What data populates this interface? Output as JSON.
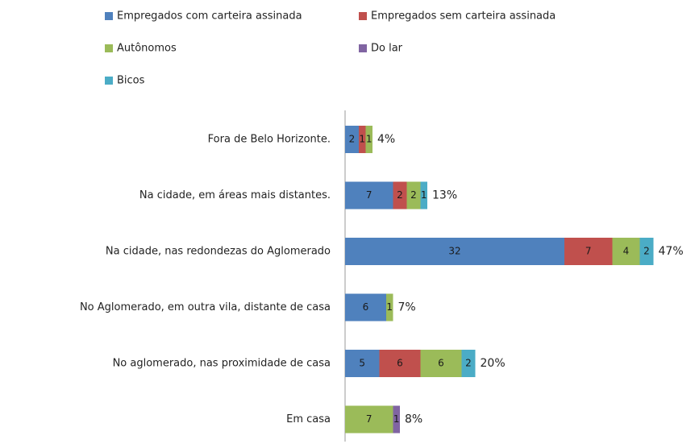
{
  "chart_data": {
    "type": "stacked-bar-horizontal",
    "categories": [
      "Fora de Belo Horizonte.",
      "Na cidade, em áreas mais distantes.",
      "Na cidade, nas redondezas do Aglomerado",
      "No Aglomerado, em outra vila, distante de casa",
      "No aglomerado, nas proximidade de casa",
      "Em casa"
    ],
    "series": [
      {
        "name": "Empregados com carteira assinada",
        "color": "#4f81bd",
        "values": [
          2,
          7,
          32,
          6,
          5,
          null
        ]
      },
      {
        "name": "Empregados sem carteira assinada",
        "color": "#c0504d",
        "values": [
          1,
          2,
          7,
          null,
          6,
          null
        ]
      },
      {
        "name": "Autônomos",
        "color": "#9bbb59",
        "values": [
          1,
          2,
          4,
          1,
          6,
          7
        ]
      },
      {
        "name": "Do lar",
        "color": "#8064a2",
        "values": [
          null,
          null,
          null,
          null,
          null,
          1
        ]
      },
      {
        "name": "Bicos",
        "color": "#4bacc6",
        "values": [
          null,
          1,
          2,
          null,
          2,
          null
        ]
      }
    ],
    "totals": [
      4,
      13,
      47,
      7,
      20,
      8
    ],
    "total_labels": [
      "4%",
      "13%",
      "47%",
      "7%",
      "20%",
      "8%"
    ],
    "xlim": [
      0,
      48
    ]
  }
}
